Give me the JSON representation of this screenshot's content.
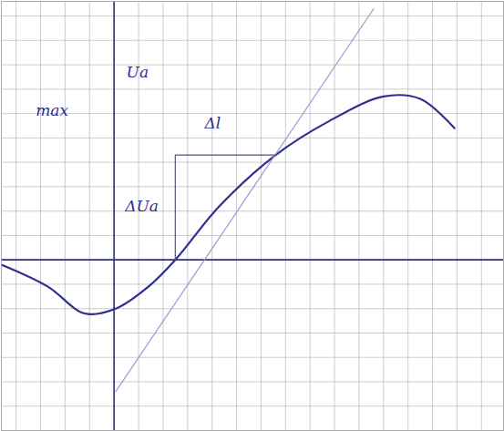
{
  "chart_data": {
    "type": "line",
    "xlim": [
      -4.6,
      15.9
    ],
    "ylim": [
      -7.0,
      10.6
    ],
    "xticks": [
      -4,
      -3,
      -2,
      -1,
      0,
      1,
      2,
      3,
      4,
      5,
      6,
      7,
      8,
      9,
      10,
      11,
      12,
      13,
      14,
      15
    ],
    "yticks": [
      -7,
      -6,
      -5,
      -4,
      -3,
      -2,
      -1,
      0,
      1,
      2,
      3,
      4,
      5,
      6,
      7,
      8,
      9,
      10
    ],
    "grid": true,
    "tick_labels": false,
    "series": [
      {
        "color": "#2f2f8f",
        "line_style": "solid",
        "x": [
          -4.6,
          -2.7,
          -1.2,
          0.07,
          1.4,
          2.5,
          4.3,
          6.6,
          8.8,
          11.0,
          12.5,
          13.9
        ],
        "values": [
          -0.2,
          -1.1,
          -2.2,
          -2.0,
          -1.1,
          0.0,
          2.2,
          4.3,
          5.7,
          6.7,
          6.6,
          5.4
        ]
      },
      {
        "color": "#9a9ad0",
        "line_style": "solid",
        "x": [
          0.07,
          10.6
        ],
        "values": [
          -5.4,
          10.3
        ]
      },
      {
        "color": "#555577",
        "line_style": "solid",
        "x": [
          2.5,
          2.5,
          6.6
        ],
        "values": [
          0.0,
          4.3,
          4.3
        ]
      }
    ],
    "annotations": [
      {
        "text": "Ua",
        "x": 0.5,
        "y": 7.7
      },
      {
        "text": "ΔUa",
        "x": 0.45,
        "y": 2.2
      },
      {
        "text": "Δl",
        "x": 3.7,
        "y": 5.6
      },
      {
        "text": "max",
        "x": -3.2,
        "y": 6.1
      }
    ]
  }
}
